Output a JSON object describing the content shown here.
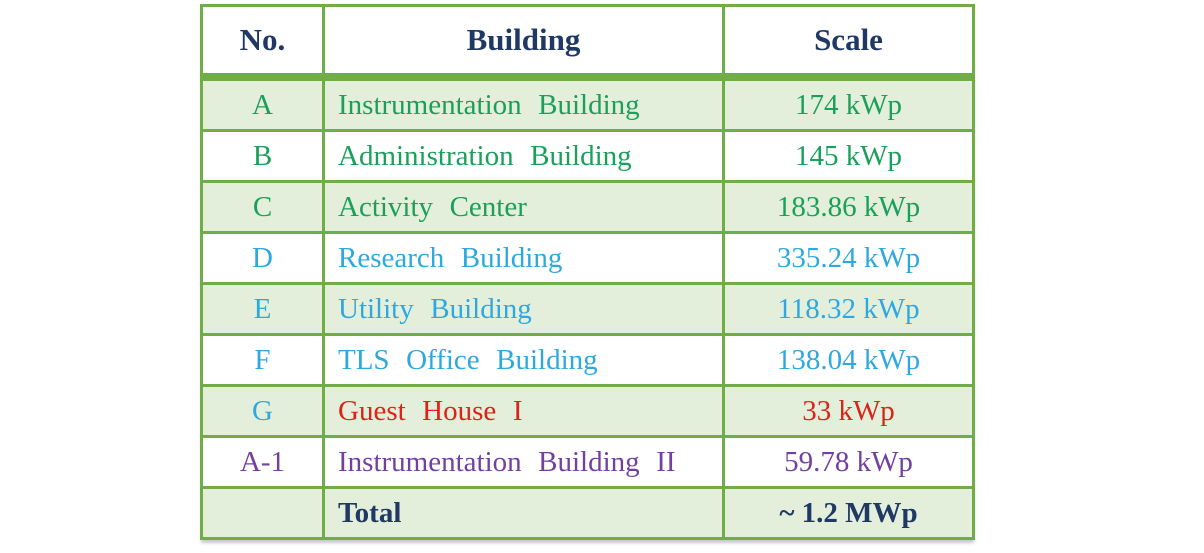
{
  "chart_data": {
    "type": "table",
    "columns": [
      "No.",
      "Building",
      "Scale"
    ],
    "rows": [
      {
        "no": "A",
        "building": "Instrumentation Building",
        "scale": "174 kWp",
        "text_color": "green",
        "no_color": "green",
        "shaded": true,
        "bold": false
      },
      {
        "no": "B",
        "building": "Administration Building",
        "scale": "145 kWp",
        "text_color": "green",
        "no_color": "green",
        "shaded": false,
        "bold": false
      },
      {
        "no": "C",
        "building": "Activity Center",
        "scale": "183.86 kWp",
        "text_color": "green",
        "no_color": "green",
        "shaded": true,
        "bold": false
      },
      {
        "no": "D",
        "building": "Research Building",
        "scale": "335.24 kWp",
        "text_color": "blue",
        "no_color": "blue",
        "shaded": false,
        "bold": false
      },
      {
        "no": "E",
        "building": "Utility Building",
        "scale": "118.32 kWp",
        "text_color": "blue",
        "no_color": "blue",
        "shaded": true,
        "bold": false
      },
      {
        "no": "F",
        "building": "TLS Office Building",
        "scale": "138.04 kWp",
        "text_color": "blue",
        "no_color": "blue",
        "shaded": false,
        "bold": false
      },
      {
        "no": "G",
        "building": "Guest House I",
        "scale": "33 kWp",
        "text_color": "red",
        "no_color": "blue",
        "shaded": true,
        "bold": false
      },
      {
        "no": "A-1",
        "building": "Instrumentation Building II",
        "scale": "59.78 kWp",
        "text_color": "purple",
        "no_color": "purple",
        "shaded": false,
        "bold": false
      },
      {
        "no": "",
        "building": "Total",
        "scale": "~ 1.2 MWp",
        "text_color": "navy",
        "no_color": "navy",
        "shaded": true,
        "bold": true
      }
    ]
  },
  "colors": {
    "border": "#70AD47",
    "shade": "#E4EFDB",
    "green": "#1AA05A",
    "blue": "#2FA8DF",
    "red": "#DB2418",
    "purple": "#7240A2",
    "navy": "#1F3864"
  }
}
